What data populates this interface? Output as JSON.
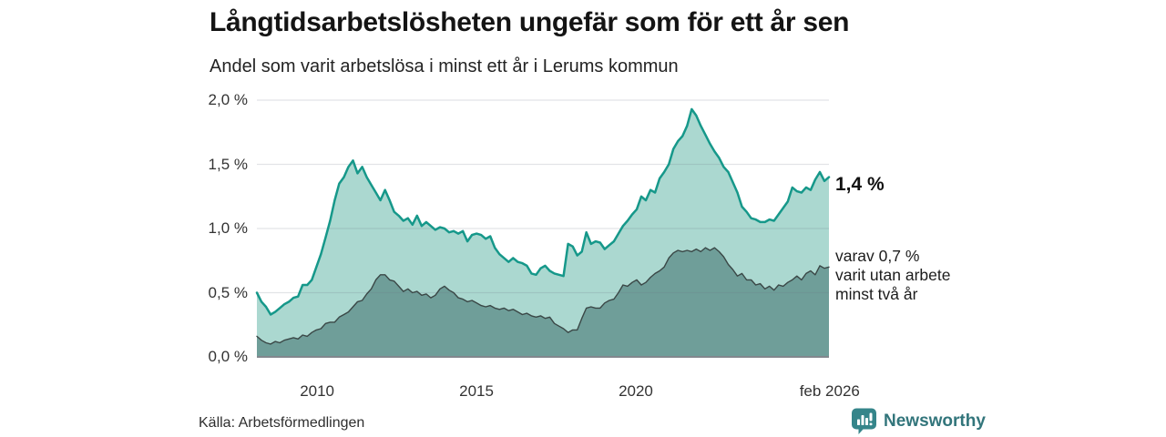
{
  "header": {
    "title": "Långtidsarbetslösheten ungefär som för ett år sen",
    "subtitle": "Andel som varit arbetslösa i minst ett år i Lerums kommun"
  },
  "annotations": {
    "total_end_label": "1,4 %",
    "two_year_end_label": "varav 0,7 %\nvarit utan arbete\nminst två år"
  },
  "footer": {
    "source": "Källa: Arbetsförmedlingen",
    "brand": "Newsworthy"
  },
  "colors": {
    "total_line": "#16988a",
    "total_fill": "#abd8d0",
    "two_year_line": "#3a4746",
    "two_year_fill": "#6f9e99",
    "grid": "rgba(110,120,135,0.20)",
    "baseline": "#82878d",
    "text": "#333333",
    "logo_icon": "#35858a",
    "logo_text": "#32757b"
  },
  "chart_data": {
    "type": "area",
    "title": "Långtidsarbetslösheten ungefär som för ett år sen",
    "subtitle": "Andel som varit arbetslösa i minst ett år i Lerums kommun",
    "unit": "percent",
    "x_start_year": 2008.11,
    "x_end_year": 2026.06,
    "ylim": [
      0,
      2.0
    ],
    "grid": true,
    "legend_position": "end-of-line-labels",
    "y_ticks": [
      {
        "label": "0,0 %",
        "value": 0.0
      },
      {
        "label": "0,5 %",
        "value": 0.5
      },
      {
        "label": "1,0 %",
        "value": 1.0
      },
      {
        "label": "1,5 %",
        "value": 1.5
      },
      {
        "label": "2,0 %",
        "value": 2.0
      }
    ],
    "x_ticks": [
      {
        "label": "2010",
        "year": 2010
      },
      {
        "label": "2015",
        "year": 2015
      },
      {
        "label": "2020",
        "year": 2020
      },
      {
        "label": "feb 2026",
        "year": 2026.083
      }
    ],
    "series": [
      {
        "name": "Andel arbetslösa minst ett år",
        "end_label": "1,4 %",
        "end_value": 1.4,
        "values": [
          0.5,
          0.43,
          0.39,
          0.33,
          0.35,
          0.38,
          0.41,
          0.43,
          0.46,
          0.47,
          0.56,
          0.56,
          0.6,
          0.7,
          0.8,
          0.93,
          1.06,
          1.22,
          1.35,
          1.4,
          1.48,
          1.53,
          1.43,
          1.48,
          1.4,
          1.34,
          1.28,
          1.22,
          1.3,
          1.22,
          1.13,
          1.1,
          1.06,
          1.08,
          1.03,
          1.1,
          1.02,
          1.05,
          1.02,
          0.99,
          1.01,
          1.0,
          0.97,
          0.98,
          0.96,
          0.98,
          0.9,
          0.95,
          0.96,
          0.95,
          0.92,
          0.94,
          0.85,
          0.8,
          0.77,
          0.74,
          0.77,
          0.74,
          0.73,
          0.71,
          0.65,
          0.64,
          0.69,
          0.71,
          0.67,
          0.65,
          0.64,
          0.63,
          0.88,
          0.86,
          0.79,
          0.82,
          0.97,
          0.88,
          0.9,
          0.89,
          0.84,
          0.87,
          0.9,
          0.96,
          1.02,
          1.06,
          1.11,
          1.15,
          1.25,
          1.22,
          1.3,
          1.28,
          1.39,
          1.44,
          1.5,
          1.62,
          1.68,
          1.72,
          1.8,
          1.93,
          1.88,
          1.8,
          1.73,
          1.66,
          1.6,
          1.55,
          1.48,
          1.44,
          1.36,
          1.28,
          1.17,
          1.13,
          1.08,
          1.07,
          1.05,
          1.05,
          1.07,
          1.06,
          1.11,
          1.16,
          1.21,
          1.32,
          1.29,
          1.28,
          1.32,
          1.3,
          1.38,
          1.44,
          1.37,
          1.4
        ]
      },
      {
        "name": "varav utan arbete minst två år",
        "end_label": "varav 0,7 % varit utan arbete minst två år",
        "end_value": 0.7,
        "values": [
          0.16,
          0.13,
          0.11,
          0.1,
          0.12,
          0.11,
          0.13,
          0.14,
          0.15,
          0.14,
          0.17,
          0.16,
          0.19,
          0.21,
          0.22,
          0.26,
          0.27,
          0.27,
          0.31,
          0.33,
          0.35,
          0.39,
          0.43,
          0.44,
          0.49,
          0.53,
          0.6,
          0.64,
          0.64,
          0.6,
          0.59,
          0.55,
          0.51,
          0.53,
          0.5,
          0.51,
          0.48,
          0.49,
          0.46,
          0.48,
          0.53,
          0.55,
          0.52,
          0.5,
          0.46,
          0.45,
          0.43,
          0.44,
          0.42,
          0.4,
          0.39,
          0.4,
          0.38,
          0.37,
          0.38,
          0.36,
          0.37,
          0.35,
          0.33,
          0.34,
          0.32,
          0.31,
          0.32,
          0.3,
          0.31,
          0.26,
          0.24,
          0.22,
          0.19,
          0.21,
          0.21,
          0.3,
          0.38,
          0.39,
          0.38,
          0.38,
          0.42,
          0.44,
          0.45,
          0.5,
          0.56,
          0.55,
          0.58,
          0.6,
          0.56,
          0.58,
          0.62,
          0.65,
          0.67,
          0.7,
          0.77,
          0.81,
          0.83,
          0.82,
          0.83,
          0.82,
          0.84,
          0.82,
          0.85,
          0.83,
          0.85,
          0.82,
          0.78,
          0.72,
          0.68,
          0.63,
          0.65,
          0.6,
          0.6,
          0.56,
          0.57,
          0.53,
          0.55,
          0.52,
          0.56,
          0.55,
          0.58,
          0.6,
          0.63,
          0.6,
          0.65,
          0.67,
          0.64,
          0.71,
          0.69,
          0.7
        ]
      }
    ]
  }
}
